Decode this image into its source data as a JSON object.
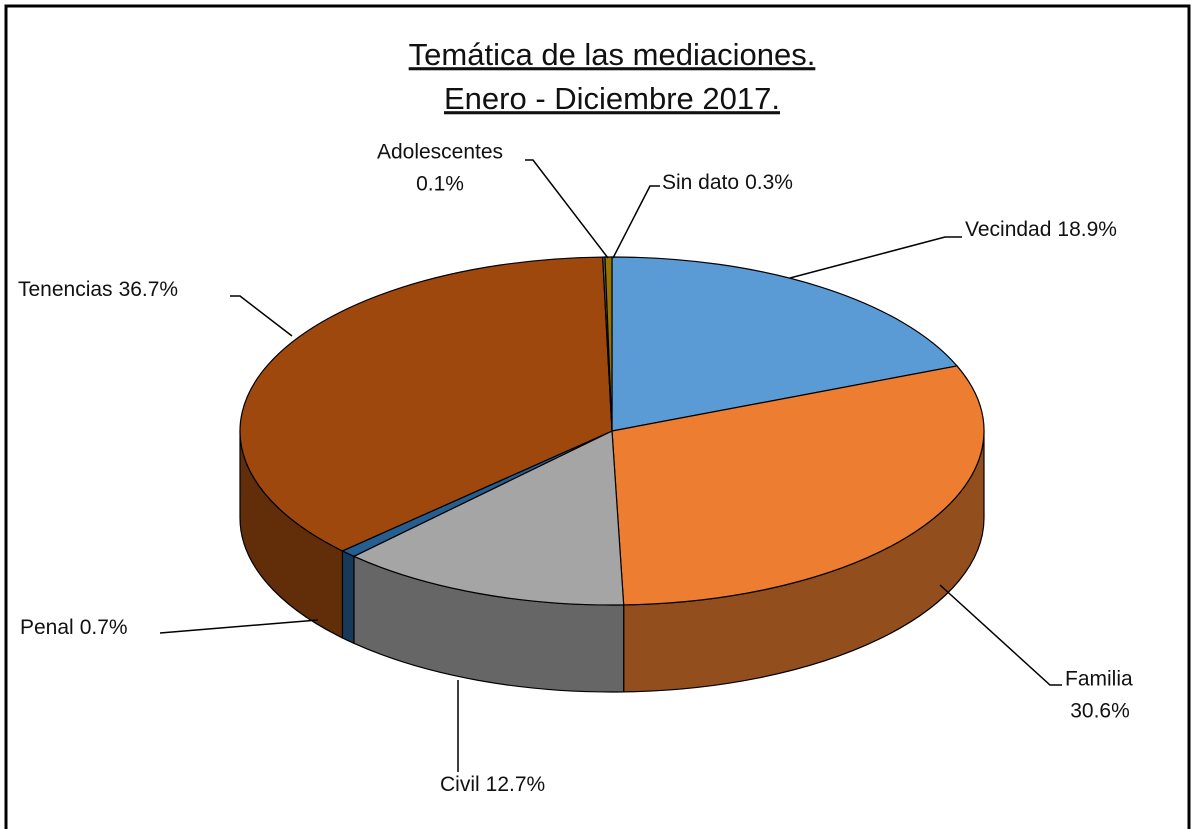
{
  "chart_data": {
    "type": "pie3d",
    "title": [
      "Temática de las mediaciones.",
      "Enero - Diciembre 2017."
    ],
    "categories": [
      "Vecindad",
      "Familia",
      "Civil",
      "Penal",
      "Tenencias",
      "Adolescentes",
      "Sin dato"
    ],
    "values": [
      18.9,
      30.6,
      12.7,
      0.7,
      36.7,
      0.1,
      0.3
    ],
    "value_labels": [
      "18.9%",
      "30.6%",
      "12.7%",
      "0.7%",
      "36.7%",
      "0.1%",
      "0.3%"
    ],
    "colors": [
      "#5b9bd5",
      "#ed7d31",
      "#a5a5a5",
      "#255e91",
      "#9e480e",
      "#636363",
      "#997300"
    ]
  }
}
